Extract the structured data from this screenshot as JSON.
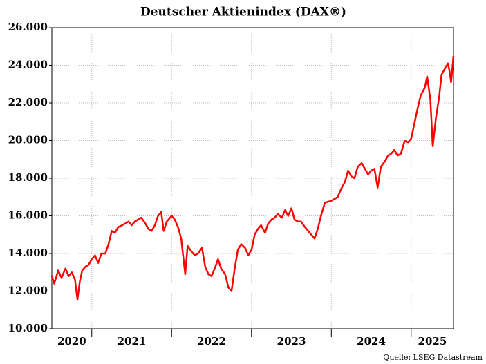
{
  "chart_data": {
    "type": "line",
    "title": "Deutscher Aktienindex (DAX®)",
    "source": "Quelle: LSEG Datastream",
    "x": [
      2020.5,
      2020.53,
      2020.58,
      2020.62,
      2020.67,
      2020.71,
      2020.75,
      2020.79,
      2020.82,
      2020.85,
      2020.88,
      2020.92,
      2020.96,
      2021.0,
      2021.04,
      2021.08,
      2021.12,
      2021.17,
      2021.21,
      2021.25,
      2021.29,
      2021.33,
      2021.38,
      2021.42,
      2021.46,
      2021.5,
      2021.54,
      2021.58,
      2021.62,
      2021.67,
      2021.71,
      2021.75,
      2021.79,
      2021.83,
      2021.87,
      2021.9,
      2021.94,
      2022.0,
      2022.04,
      2022.08,
      2022.12,
      2022.17,
      2022.2,
      2022.25,
      2022.29,
      2022.33,
      2022.38,
      2022.42,
      2022.46,
      2022.5,
      2022.54,
      2022.58,
      2022.62,
      2022.67,
      2022.71,
      2022.75,
      2022.79,
      2022.83,
      2022.87,
      2022.92,
      2022.96,
      2023.0,
      2023.04,
      2023.08,
      2023.12,
      2023.17,
      2023.21,
      2023.25,
      2023.29,
      2023.33,
      2023.38,
      2023.42,
      2023.46,
      2023.5,
      2023.54,
      2023.58,
      2023.62,
      2023.67,
      2023.71,
      2023.75,
      2023.79,
      2023.83,
      2023.87,
      2023.92,
      2023.96,
      2024.0,
      2024.04,
      2024.08,
      2024.12,
      2024.17,
      2024.21,
      2024.25,
      2024.29,
      2024.33,
      2024.38,
      2024.42,
      2024.46,
      2024.5,
      2024.54,
      2024.58,
      2024.62,
      2024.67,
      2024.71,
      2024.75,
      2024.79,
      2024.83,
      2024.87,
      2024.92,
      2024.96,
      2025.0,
      2025.04,
      2025.08,
      2025.12,
      2025.17,
      2025.2,
      2025.24,
      2025.27,
      2025.31,
      2025.35,
      2025.38,
      2025.42,
      2025.46,
      2025.48,
      2025.5,
      2025.52,
      2025.53
    ],
    "series": [
      {
        "name": "DAX",
        "color": "#ff0000",
        "values": [
          12800,
          12400,
          13100,
          12700,
          13200,
          12800,
          13000,
          12600,
          11550,
          12500,
          13100,
          13300,
          13400,
          13700,
          13900,
          13500,
          14000,
          14000,
          14500,
          15200,
          15100,
          15400,
          15500,
          15600,
          15700,
          15500,
          15700,
          15800,
          15900,
          15600,
          15300,
          15200,
          15500,
          16000,
          16200,
          15200,
          15700,
          16000,
          15800,
          15400,
          14800,
          12900,
          14400,
          14100,
          13900,
          14000,
          14300,
          13300,
          12900,
          12800,
          13200,
          13700,
          13200,
          12900,
          12200,
          12000,
          13200,
          14200,
          14500,
          14300,
          13900,
          14200,
          15000,
          15300,
          15500,
          15100,
          15600,
          15800,
          15900,
          16100,
          15900,
          16300,
          16000,
          16400,
          15800,
          15700,
          15700,
          15400,
          15200,
          15000,
          14800,
          15300,
          16000,
          16700,
          16750,
          16800,
          16900,
          17000,
          17400,
          17800,
          18400,
          18100,
          18000,
          18600,
          18800,
          18500,
          18200,
          18400,
          18500,
          17500,
          18600,
          18900,
          19200,
          19300,
          19500,
          19200,
          19300,
          20000,
          19900,
          20100,
          20900,
          21700,
          22400,
          22800,
          23400,
          22200,
          19700,
          21200,
          22300,
          23500,
          23800,
          24100,
          23700,
          23100,
          24000,
          24500
        ]
      }
    ],
    "xlim": [
      2020.5,
      2025.53
    ],
    "xticks": [
      2020,
      2021,
      2022,
      2023,
      2024,
      2025
    ],
    "ylim": [
      10000,
      26000
    ],
    "yticks": [
      {
        "value": 10000,
        "label": "10.000"
      },
      {
        "value": 12000,
        "label": "12.000"
      },
      {
        "value": 14000,
        "label": "14.000"
      },
      {
        "value": 16000,
        "label": "16.000"
      },
      {
        "value": 18000,
        "label": "18.000"
      },
      {
        "value": 20000,
        "label": "20.000"
      },
      {
        "value": 22000,
        "label": "22.000"
      },
      {
        "value": 24000,
        "label": "24.000"
      },
      {
        "value": 26000,
        "label": "26.000"
      }
    ],
    "grid": true
  }
}
